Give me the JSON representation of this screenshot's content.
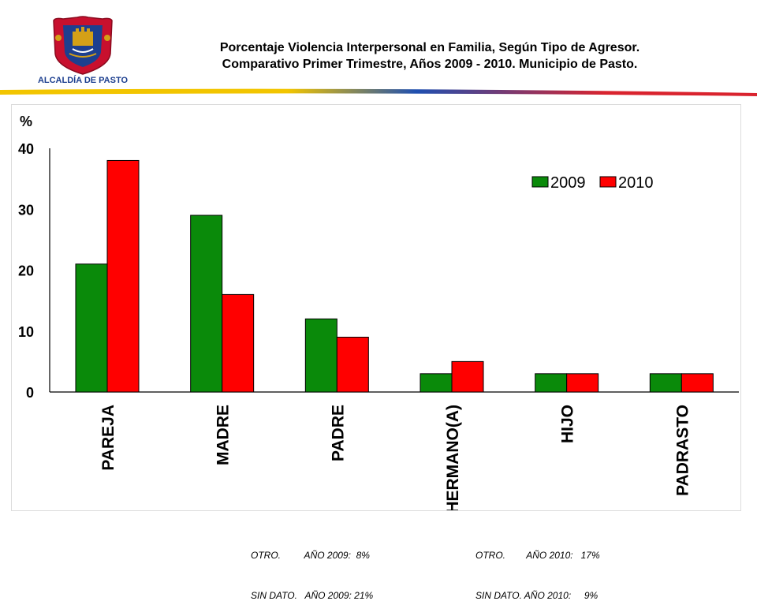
{
  "header": {
    "logo_text": "ALCALDÍA DE PASTO",
    "title_line1": "Porcentaje Violencia Interpersonal en Familia, Según Tipo de Agresor.",
    "title_line2": "Comparativo Primer Trimestre, Años 2009 - 2010. Municipio de Pasto."
  },
  "colors": {
    "series_2009": "#0a8a0a",
    "series_2010": "#ff0000",
    "banner_yellow": "#f2c500",
    "banner_blue": "#1f4fb0",
    "banner_red": "#d9232e",
    "logo_red": "#c8102e",
    "logo_gold": "#d4a017",
    "logo_blue": "#1d3f8f"
  },
  "chart_data": {
    "type": "bar",
    "ylabel": "%",
    "ylim": [
      0,
      40
    ],
    "yticks": [
      0,
      10,
      20,
      30,
      40
    ],
    "categories": [
      "PAREJA",
      "MADRE",
      "PADRE",
      "HERMANO(A)",
      "HIJO",
      "PADRASTO"
    ],
    "series": [
      {
        "name": "2009",
        "values": [
          21,
          29,
          12,
          3,
          3,
          3
        ]
      },
      {
        "name": "2010",
        "values": [
          38,
          16,
          9,
          5,
          3,
          3
        ]
      }
    ],
    "legend_position": "top-right",
    "grid": false
  },
  "footnotes": {
    "left_line1": "OTRO.         AÑO 2009:  8%",
    "left_line2": "SIN DATO.   AÑO 2009: 21%",
    "right_line1": "OTRO.        AÑO 2010:   17%",
    "right_line2": "SIN DATO. AÑO 2010:     9%"
  }
}
